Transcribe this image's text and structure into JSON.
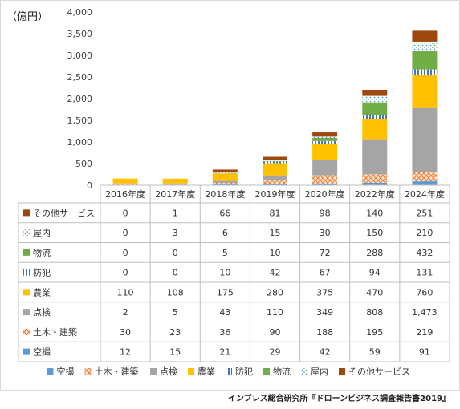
{
  "chart_data": {
    "type": "bar",
    "stacked": true,
    "unit_label": "（億円）",
    "categories": [
      "2016年度",
      "2017年度",
      "2018年度",
      "2019年度",
      "2020年度",
      "2022年度",
      "2024年度"
    ],
    "ylim": [
      0,
      4000
    ],
    "yticks": [
      "0",
      "500",
      "1,000",
      "1,500",
      "2,000",
      "2,500",
      "3,000",
      "3,500",
      "4,000"
    ],
    "grid": false,
    "legend_position": "bottom",
    "series": [
      {
        "name": "空撮",
        "color": "#5b9bd5",
        "values": [
          12,
          15,
          21,
          29,
          42,
          59,
          91
        ],
        "labels": [
          "12",
          "15",
          "21",
          "29",
          "42",
          "59",
          "91"
        ]
      },
      {
        "name": "土木・建築",
        "color": "#ed7d31",
        "values": [
          30,
          23,
          36,
          90,
          188,
          195,
          219
        ],
        "labels": [
          "30",
          "23",
          "36",
          "90",
          "188",
          "195",
          "219"
        ]
      },
      {
        "name": "点検",
        "color": "#a5a5a5",
        "values": [
          2,
          5,
          43,
          110,
          349,
          808,
          1473
        ],
        "labels": [
          "2",
          "5",
          "43",
          "110",
          "349",
          "808",
          "1,473"
        ]
      },
      {
        "name": "農業",
        "color": "#ffc000",
        "values": [
          110,
          108,
          175,
          280,
          375,
          470,
          760
        ],
        "labels": [
          "110",
          "108",
          "175",
          "280",
          "375",
          "470",
          "760"
        ]
      },
      {
        "name": "防犯",
        "color": "#4472c4",
        "values": [
          0,
          0,
          10,
          42,
          67,
          94,
          131
        ],
        "labels": [
          "0",
          "0",
          "10",
          "42",
          "67",
          "94",
          "131"
        ]
      },
      {
        "name": "物流",
        "color": "#70ad47",
        "values": [
          0,
          0,
          5,
          10,
          72,
          288,
          432
        ],
        "labels": [
          "0",
          "0",
          "5",
          "10",
          "72",
          "288",
          "432"
        ]
      },
      {
        "name": "屋内",
        "color": "#9dc3e6",
        "values": [
          0,
          3,
          6,
          15,
          30,
          150,
          210
        ],
        "labels": [
          "0",
          "3",
          "6",
          "15",
          "30",
          "150",
          "210"
        ]
      },
      {
        "name": "その他サービス",
        "color": "#9e480e",
        "values": [
          0,
          1,
          66,
          81,
          98,
          140,
          251
        ],
        "labels": [
          "0",
          "1",
          "66",
          "81",
          "98",
          "140",
          "251"
        ]
      }
    ],
    "source": "インプレス総合研究所『ドローンビジネス調査報告書2019』"
  }
}
